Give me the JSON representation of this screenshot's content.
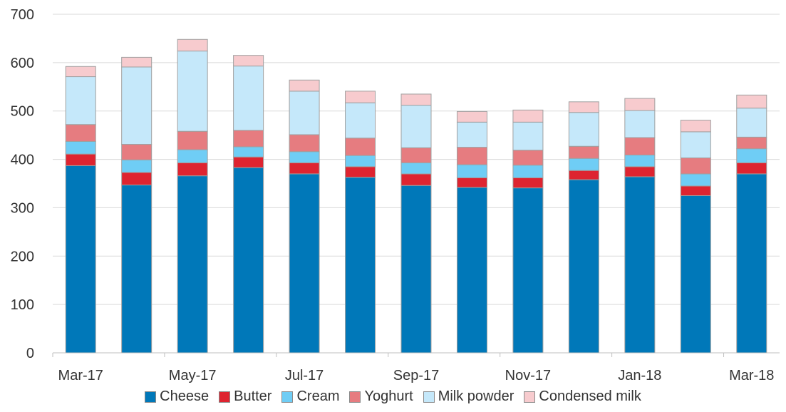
{
  "chart_data": {
    "type": "bar",
    "stacked": true,
    "categories": [
      "Mar-17",
      "Apr-17",
      "May-17",
      "Jun-17",
      "Jul-17",
      "Aug-17",
      "Sep-17",
      "Oct-17",
      "Nov-17",
      "Dec-17",
      "Jan-18",
      "Feb-18",
      "Mar-18"
    ],
    "x_tick_labels": [
      "Mar-17",
      "May-17",
      "Jul-17",
      "Sep-17",
      "Nov-17",
      "Jan-18",
      "Mar-18"
    ],
    "y_ticks": [
      0,
      100,
      200,
      300,
      400,
      500,
      600,
      700
    ],
    "ylim": [
      0,
      700
    ],
    "grid": true,
    "legend_position": "bottom",
    "series": [
      {
        "name": "Cheese",
        "color": "#0078b9",
        "values": [
          387,
          347,
          366,
          383,
          370,
          363,
          346,
          342,
          341,
          358,
          364,
          325,
          370
        ]
      },
      {
        "name": "Butter",
        "color": "#de2430",
        "values": [
          24,
          26,
          27,
          22,
          23,
          22,
          24,
          20,
          21,
          19,
          21,
          20,
          23
        ]
      },
      {
        "name": "Cream",
        "color": "#6fcdf5",
        "values": [
          26,
          26,
          27,
          21,
          23,
          23,
          23,
          27,
          26,
          25,
          24,
          25,
          29
        ]
      },
      {
        "name": "Yoghurt",
        "color": "#e67c80",
        "values": [
          35,
          32,
          38,
          34,
          35,
          36,
          31,
          36,
          31,
          25,
          36,
          33,
          24
        ]
      },
      {
        "name": "Milk powder",
        "color": "#c5e8fa",
        "values": [
          99,
          160,
          166,
          133,
          90,
          73,
          88,
          52,
          58,
          70,
          56,
          54,
          60
        ]
      },
      {
        "name": "Condensed milk",
        "color": "#f7cbce",
        "values": [
          21,
          20,
          24,
          22,
          23,
          24,
          23,
          22,
          25,
          22,
          25,
          24,
          27
        ]
      }
    ]
  }
}
